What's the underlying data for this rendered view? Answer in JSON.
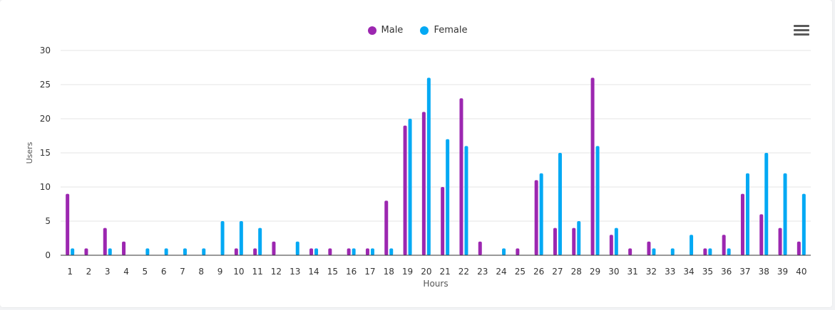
{
  "legend": {
    "male_label": "Male",
    "female_label": "Female"
  },
  "menu_icon": "hamburger-menu-icon",
  "colors": {
    "male": "#9c27b0",
    "female": "#03a9f4",
    "grid": "#e6e6e6",
    "axis": "#333333",
    "text": "#333333"
  },
  "chart_data": {
    "type": "bar",
    "xlabel": "Hours",
    "ylabel": "Users",
    "ylim": [
      0,
      30
    ],
    "yticks": [
      0,
      5,
      10,
      15,
      20,
      25,
      30
    ],
    "grid": true,
    "legend_position": "top-center",
    "categories": [
      "1",
      "2",
      "3",
      "4",
      "5",
      "6",
      "7",
      "8",
      "9",
      "10",
      "11",
      "12",
      "13",
      "14",
      "15",
      "16",
      "17",
      "18",
      "19",
      "20",
      "21",
      "22",
      "23",
      "24",
      "25",
      "26",
      "27",
      "28",
      "29",
      "30",
      "31",
      "32",
      "33",
      "34",
      "35",
      "36",
      "37",
      "38",
      "39",
      "40"
    ],
    "series": [
      {
        "name": "Male",
        "values": [
          9,
          1,
          4,
          2,
          0,
          0,
          0,
          0,
          0,
          1,
          1,
          2,
          0,
          1,
          1,
          1,
          1,
          8,
          19,
          21,
          10,
          23,
          2,
          0,
          1,
          11,
          4,
          4,
          26,
          3,
          1,
          2,
          0,
          0,
          1,
          3,
          9,
          6,
          4,
          2
        ]
      },
      {
        "name": "Female",
        "values": [
          1,
          0,
          1,
          0,
          1,
          1,
          1,
          1,
          5,
          5,
          4,
          0,
          2,
          1,
          0,
          1,
          1,
          1,
          20,
          26,
          17,
          16,
          0,
          1,
          0,
          12,
          15,
          5,
          16,
          4,
          0,
          1,
          1,
          3,
          1,
          1,
          12,
          15,
          12,
          9
        ]
      }
    ]
  }
}
